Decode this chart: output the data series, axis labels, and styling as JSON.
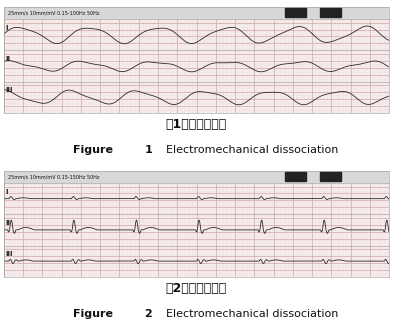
{
  "overall_bg": "#ffffff",
  "panel_bg": "#f9f0f0",
  "ecg_color": "#2a2a2a",
  "grid_major_color": "#d4a8a8",
  "grid_minor_color": "#eddada",
  "header_bg": "#d8d8d8",
  "header_text_color": "#111111",
  "lead_label_color": "#222222",
  "caption_cn_color": "#111111",
  "caption_en_color": "#111111",
  "border_color": "#999999",
  "black_rect_color": "#222222",
  "fig1_header": "25mm/s 10mm/mV 0.15-100Hz 50Hz",
  "fig2_header": "25mm/s 10mm/mV 0.15-150Hz 50Hz",
  "lead_labels": [
    "I",
    "II",
    "III"
  ],
  "cn_titles": [
    "图1　电机械分离",
    "图2　电机械分离"
  ],
  "en_prefix_bold": "Figure",
  "en_nums": [
    "1",
    "2"
  ],
  "en_suffix": "Electromechanical dissociation",
  "ecg_linewidth": 0.6
}
